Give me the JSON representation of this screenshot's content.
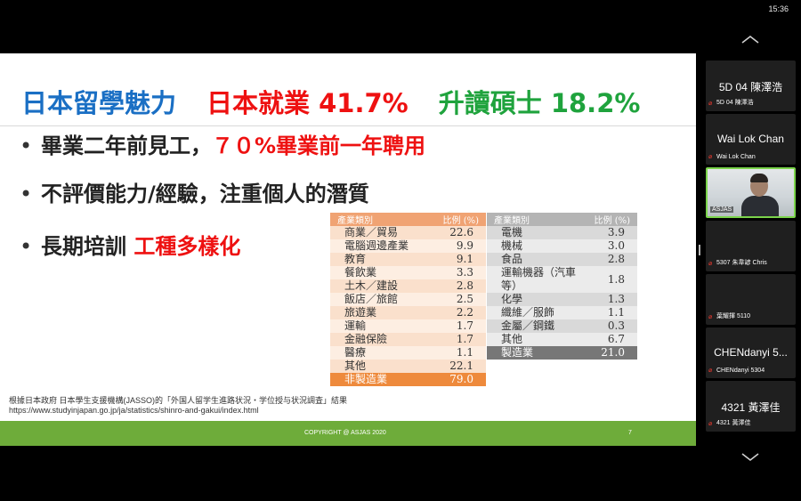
{
  "status_bar": {
    "clock": "15:36"
  },
  "slide": {
    "title": {
      "part1": "日本留學魅力",
      "part2": "日本就業 41.7%",
      "part3": "升讀碩士 18.2%"
    },
    "bullets": [
      {
        "text": "畢業二年前見工，",
        "highlight": "７０%畢業前一年聘用"
      },
      {
        "text": "不評價能力/經驗，注重個人的潛質",
        "highlight": ""
      },
      {
        "text": "長期培訓 ",
        "highlight": "工種多樣化"
      }
    ],
    "table_left": {
      "headers": [
        "產業類別",
        "比例 (%)"
      ],
      "rows": [
        [
          "商業／貿易",
          "22.6"
        ],
        [
          "電腦週邊產業",
          "9.9"
        ],
        [
          "教育",
          "9.1"
        ],
        [
          "餐飲業",
          "3.3"
        ],
        [
          "土木／建設",
          "2.8"
        ],
        [
          "飯店／旅館",
          "2.5"
        ],
        [
          "旅遊業",
          "2.2"
        ],
        [
          "運輸",
          "1.7"
        ],
        [
          "金融保險",
          "1.7"
        ],
        [
          "醫療",
          "1.1"
        ],
        [
          "其他",
          "22.1"
        ]
      ],
      "total": [
        "非製造業",
        "79.0"
      ]
    },
    "table_right": {
      "headers": [
        "產業類別",
        "比例 (%)"
      ],
      "rows": [
        [
          "電機",
          "3.9"
        ],
        [
          "機械",
          "3.0"
        ],
        [
          "食品",
          "2.8"
        ],
        [
          "運輸機器（汽車等）",
          "1.8"
        ],
        [
          "化學",
          "1.3"
        ],
        [
          "纖維／服飾",
          "1.1"
        ],
        [
          "金屬／鋼鐵",
          "0.3"
        ],
        [
          "其他",
          "6.7"
        ]
      ],
      "total": [
        "製造業",
        "21.0"
      ]
    },
    "source_line1": "根據日本政府 日本學生支援機構(JASSO)的「外国人留学生進路状況・学位授与状況調査」結果",
    "source_line2": "https://www.studyinjapan.go.jp/ja/statistics/shinro-and-gakui/index.html",
    "footer": {
      "copyright": "COPYRIGHT @ ASJAS 2020",
      "page": "7"
    }
  },
  "participants": [
    {
      "display": "5D 04 陳澤浩",
      "label": "5D 04 陳澤浩",
      "type": "name"
    },
    {
      "display": "Wai Lok Chan",
      "label": "Wai Lok Chan",
      "type": "name"
    },
    {
      "display": "",
      "label": "ASJAS",
      "type": "video"
    },
    {
      "display": "",
      "label": "5307 朱韋諺 Chris",
      "type": "name"
    },
    {
      "display": "",
      "label": "葉耀揮 5110",
      "type": "name"
    },
    {
      "display": "CHENdanyi 5...",
      "label": "CHENdanyi 5304",
      "type": "name"
    },
    {
      "display": "4321 黃澤佳",
      "label": "4321 黃澤佳",
      "type": "name"
    }
  ],
  "colors": {
    "accent_green": "#6eac3a",
    "title_blue": "#1a6fc4",
    "title_red": "#ee1111",
    "title_green": "#1fa33d",
    "mic_muted": "#ff3b30"
  },
  "icons": {
    "scroll_up": "chevron-up-icon",
    "scroll_down": "chevron-down-icon",
    "mic": "mic-muted-icon"
  }
}
